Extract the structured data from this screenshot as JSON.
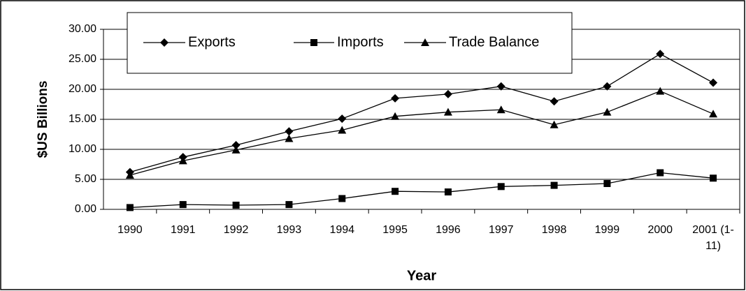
{
  "chart_data": {
    "type": "line",
    "y_label": "$US Billions",
    "x_label": "Year",
    "categories": [
      "1990",
      "1991",
      "1992",
      "1993",
      "1994",
      "1995",
      "1996",
      "1997",
      "1998",
      "1999",
      "2000",
      "2001 (1-11)"
    ],
    "series": [
      {
        "name": "Exports",
        "color": "#000000",
        "marker": "diamond",
        "values": [
          6.2,
          8.7,
          10.7,
          13.0,
          15.1,
          18.5,
          19.2,
          20.5,
          18.0,
          20.5,
          25.9,
          21.1
        ]
      },
      {
        "name": "Imports",
        "color": "#000000",
        "marker": "square",
        "values": [
          0.3,
          0.8,
          0.7,
          0.8,
          1.8,
          3.0,
          2.9,
          3.8,
          4.0,
          4.3,
          6.1,
          5.2
        ]
      },
      {
        "name": "Trade Balance",
        "color": "#000000",
        "marker": "triangle",
        "values": [
          5.7,
          8.1,
          9.9,
          11.8,
          13.2,
          15.5,
          16.2,
          16.6,
          14.1,
          16.2,
          19.7,
          15.9
        ]
      }
    ],
    "ylim": [
      0,
      30
    ],
    "yticks": [
      {
        "value": 0,
        "label": "0.00"
      },
      {
        "value": 5,
        "label": "5.00"
      },
      {
        "value": 10,
        "label": "10.00"
      },
      {
        "value": 15,
        "label": "15.00"
      },
      {
        "value": 20,
        "label": "20.00"
      },
      {
        "value": 25,
        "label": "25.00"
      },
      {
        "value": 30,
        "label": "30.00"
      }
    ],
    "grid": true,
    "legend": "top-left"
  }
}
